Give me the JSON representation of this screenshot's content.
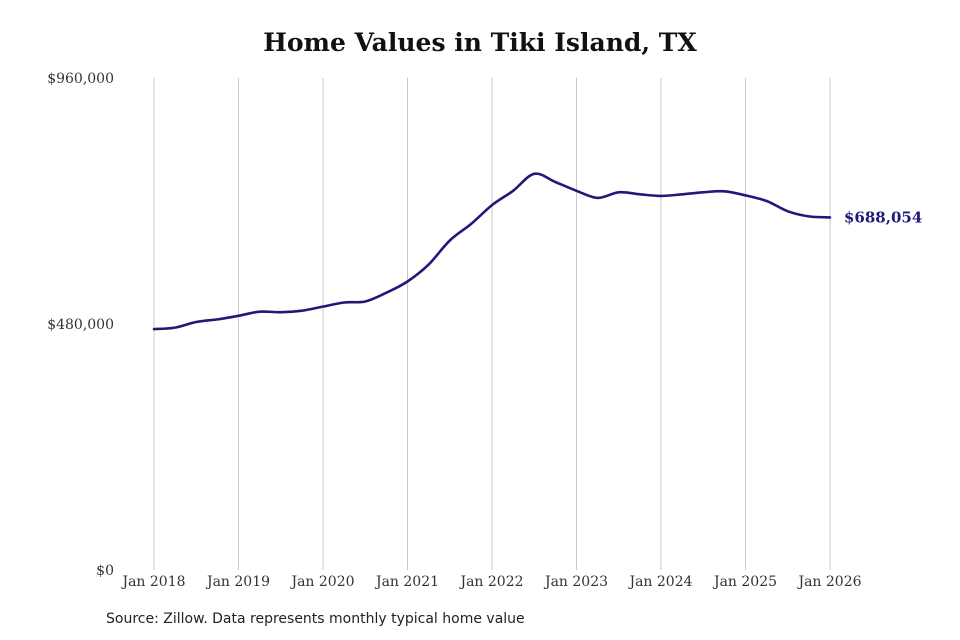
{
  "chart_data": {
    "type": "line",
    "title": "Home Values in Tiki Island, TX",
    "xlabel": "",
    "ylabel": "",
    "ylim": [
      0,
      960000
    ],
    "y_ticks": [
      {
        "value": 0,
        "label": "$0"
      },
      {
        "value": 480000,
        "label": "$480,000"
      },
      {
        "value": 960000,
        "label": "$960,000"
      }
    ],
    "x_range": [
      "2018-01",
      "2026-01"
    ],
    "x_ticks": [
      {
        "date": "2018-01",
        "label": "Jan 2018"
      },
      {
        "date": "2019-01",
        "label": "Jan 2019"
      },
      {
        "date": "2020-01",
        "label": "Jan 2020"
      },
      {
        "date": "2021-01",
        "label": "Jan 2021"
      },
      {
        "date": "2022-01",
        "label": "Jan 2022"
      },
      {
        "date": "2023-01",
        "label": "Jan 2023"
      },
      {
        "date": "2024-01",
        "label": "Jan 2024"
      },
      {
        "date": "2025-01",
        "label": "Jan 2025"
      },
      {
        "date": "2026-01",
        "label": "Jan 2026"
      }
    ],
    "grid": "vertical",
    "line_color": "#1f1a7a",
    "series": [
      {
        "values": [
          {
            "x": "2018-01",
            "y": 470000
          },
          {
            "x": "2018-04",
            "y": 473000
          },
          {
            "x": "2018-07",
            "y": 484000
          },
          {
            "x": "2018-10",
            "y": 489000
          },
          {
            "x": "2019-01",
            "y": 496000
          },
          {
            "x": "2019-04",
            "y": 504000
          },
          {
            "x": "2019-07",
            "y": 503000
          },
          {
            "x": "2019-10",
            "y": 506000
          },
          {
            "x": "2020-01",
            "y": 514000
          },
          {
            "x": "2020-04",
            "y": 522000
          },
          {
            "x": "2020-07",
            "y": 524000
          },
          {
            "x": "2020-10",
            "y": 541000
          },
          {
            "x": "2021-01",
            "y": 563000
          },
          {
            "x": "2021-04",
            "y": 596000
          },
          {
            "x": "2021-07",
            "y": 643000
          },
          {
            "x": "2021-10",
            "y": 675000
          },
          {
            "x": "2022-01",
            "y": 712000
          },
          {
            "x": "2022-04",
            "y": 740000
          },
          {
            "x": "2022-07",
            "y": 773000
          },
          {
            "x": "2022-10",
            "y": 757000
          },
          {
            "x": "2023-01",
            "y": 740000
          },
          {
            "x": "2023-04",
            "y": 726000
          },
          {
            "x": "2023-07",
            "y": 737000
          },
          {
            "x": "2023-10",
            "y": 733000
          },
          {
            "x": "2024-01",
            "y": 730000
          },
          {
            "x": "2024-04",
            "y": 733000
          },
          {
            "x": "2024-07",
            "y": 737000
          },
          {
            "x": "2024-10",
            "y": 739000
          },
          {
            "x": "2025-01",
            "y": 731000
          },
          {
            "x": "2025-04",
            "y": 720000
          },
          {
            "x": "2025-07",
            "y": 700000
          },
          {
            "x": "2025-10",
            "y": 690000
          },
          {
            "x": "2026-01",
            "y": 688054
          }
        ]
      }
    ],
    "end_label": "$688,054",
    "source": "Source: Zillow. Data represents monthly typical home value"
  }
}
